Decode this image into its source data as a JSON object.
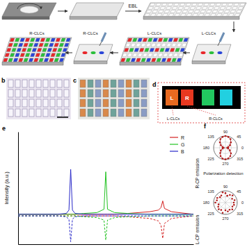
{
  "panel_labels": [
    "b",
    "c",
    "d",
    "e",
    "f"
  ],
  "schematic": {
    "step": "EBL",
    "labels": [
      "R-CLCs",
      "R-CLCs",
      "L-CLCs",
      "L-CLCs"
    ]
  },
  "panel_d": {
    "pixel_letters": [
      "L",
      "R"
    ],
    "labels": [
      "L-CLCs",
      "R-CLCs"
    ]
  },
  "chart_data": [
    {
      "type": "line",
      "ylabel": "Intensity (a.u.)",
      "annotations": [
        "R-CP emission",
        "L-CP emission"
      ],
      "x": [
        350,
        400,
        440,
        460,
        466,
        470,
        474,
        480,
        500,
        530,
        546,
        550,
        554,
        570,
        600,
        650,
        670,
        676,
        680,
        684,
        700,
        750
      ],
      "series": [
        {
          "name": "R",
          "color": "#d42020",
          "line_style": "solid",
          "values": [
            0.01,
            0.01,
            0.01,
            0.01,
            0.01,
            0.01,
            0.01,
            0.01,
            0.01,
            0.01,
            0.01,
            0.01,
            0.01,
            0.01,
            0.02,
            0.04,
            0.06,
            0.09,
            0.17,
            0.08,
            0.04,
            0.01
          ]
        },
        {
          "name": "G",
          "color": "#22c322",
          "line_style": "solid",
          "values": [
            0.01,
            0.01,
            0.01,
            0.01,
            0.01,
            0.01,
            0.01,
            0.01,
            0.02,
            0.03,
            0.07,
            0.52,
            0.07,
            0.03,
            0.02,
            0.01,
            0.01,
            0.01,
            0.01,
            0.01,
            0.01,
            0.01
          ]
        },
        {
          "name": "B",
          "color": "#2727c8",
          "line_style": "solid",
          "values": [
            0.01,
            0.01,
            0.01,
            0.02,
            0.06,
            0.55,
            0.06,
            0.02,
            0.01,
            0.01,
            0.01,
            0.01,
            0.01,
            0.01,
            0.01,
            0.01,
            0.01,
            0.01,
            0.01,
            0.01,
            0.01,
            0.01
          ]
        },
        {
          "color": "#d42020",
          "line_style": "dashed",
          "values": [
            -0.01,
            -0.01,
            -0.01,
            -0.01,
            -0.01,
            -0.01,
            -0.01,
            -0.01,
            -0.01,
            -0.01,
            -0.01,
            -0.01,
            -0.01,
            -0.01,
            -0.02,
            -0.04,
            -0.07,
            -0.12,
            -0.28,
            -0.1,
            -0.04,
            -0.01
          ]
        },
        {
          "color": "#22c322",
          "line_style": "dashed",
          "values": [
            -0.01,
            -0.01,
            -0.01,
            -0.01,
            -0.01,
            -0.01,
            -0.01,
            -0.01,
            -0.02,
            -0.03,
            -0.06,
            -0.3,
            -0.06,
            -0.03,
            -0.02,
            -0.01,
            -0.01,
            -0.01,
            -0.01,
            -0.01,
            -0.01,
            -0.01
          ]
        },
        {
          "color": "#2727c8",
          "line_style": "dashed",
          "values": [
            -0.01,
            -0.01,
            -0.01,
            -0.02,
            -0.05,
            -0.32,
            -0.05,
            -0.02,
            -0.01,
            -0.01,
            -0.01,
            -0.01,
            -0.01,
            -0.01,
            -0.01,
            -0.01,
            -0.01,
            -0.01,
            -0.01,
            -0.01,
            -0.01,
            -0.01
          ]
        }
      ],
      "xlim": [
        350,
        750
      ],
      "xticks": [],
      "ylim": [
        -0.35,
        1
      ],
      "yticks": [],
      "tick_labels": false,
      "grid": false,
      "legend": "upper right"
    },
    {
      "type": "polar",
      "xlabel": "Polarization detection",
      "x": [
        0,
        15,
        30,
        45,
        60,
        75,
        90,
        105,
        120,
        135,
        150,
        165,
        180,
        195,
        210,
        225,
        240,
        255,
        270,
        285,
        300,
        315,
        330,
        345
      ],
      "values": [
        0.15,
        0.25,
        0.45,
        0.65,
        0.85,
        0.95,
        1.0,
        0.95,
        0.85,
        0.65,
        0.45,
        0.25,
        0.15,
        0.25,
        0.45,
        0.62,
        0.82,
        0.95,
        0.98,
        0.93,
        0.82,
        0.66,
        0.43,
        0.24
      ],
      "color": "#b01c1c",
      "marker": "circle",
      "line_style": "solid",
      "xlim": [
        0,
        360
      ],
      "xticks": [
        0,
        45,
        90,
        135,
        180,
        225,
        270,
        315
      ],
      "ylim": [
        0,
        1
      ],
      "yticks": [
        0.5,
        1
      ],
      "grid": true,
      "tick_labels": "x"
    },
    {
      "type": "polar",
      "x": [
        0,
        15,
        30,
        45,
        60,
        75,
        90,
        105,
        120,
        135,
        150,
        165,
        180,
        195,
        210,
        225,
        240,
        255,
        270,
        285,
        300,
        315,
        330,
        345
      ],
      "values": [
        0.7,
        0.8,
        0.65,
        0.85,
        0.75,
        0.6,
        0.8,
        0.9,
        0.7,
        0.65,
        0.8,
        0.75,
        0.85,
        0.6,
        0.7,
        0.8,
        0.72,
        0.9,
        0.65,
        0.78,
        0.7,
        0.82,
        0.68,
        0.75
      ],
      "color": "#b01c1c",
      "marker": "circle",
      "xlim": [
        0,
        360
      ],
      "xticks": [
        0,
        45,
        90,
        135,
        180,
        225,
        270,
        315
      ],
      "ylim": [
        0,
        1
      ],
      "yticks": [
        0.5,
        1
      ],
      "grid": true,
      "tick_labels": "x"
    }
  ]
}
